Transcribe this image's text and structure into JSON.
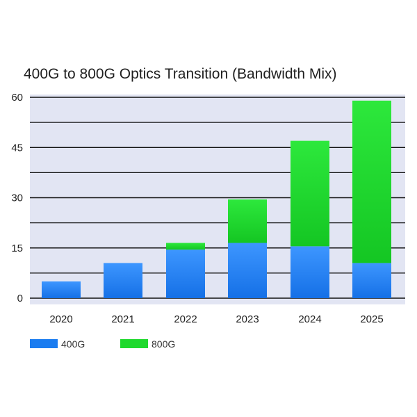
{
  "chart_data": {
    "type": "bar",
    "stacked": true,
    "title": "400G to 800G Optics Transition (Bandwidth Mix)",
    "xlabel": "",
    "ylabel": "",
    "categories": [
      "2020",
      "2021",
      "2022",
      "2023",
      "2024",
      "2025"
    ],
    "series": [
      {
        "name": "400G",
        "color": "#1a7cf0",
        "values": [
          5,
          10.5,
          14.5,
          16.5,
          15.5,
          10.5
        ]
      },
      {
        "name": "800G",
        "color": "#1fd92d",
        "values": [
          0,
          0,
          2,
          13,
          31.5,
          48.5
        ]
      }
    ],
    "ylim": [
      0,
      60
    ],
    "yticks": [
      0,
      15,
      30,
      45,
      60
    ],
    "grid": true,
    "legend_position": "bottom-left",
    "plot_background": "#e2e5f3"
  }
}
